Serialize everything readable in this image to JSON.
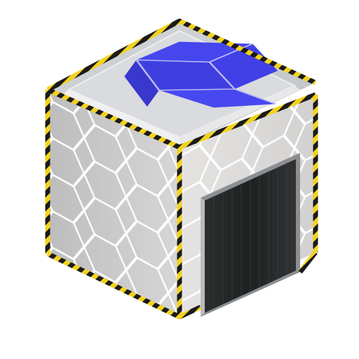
{
  "asset": {
    "icon": "open-box-icon",
    "colors": {
      "top_face": "#c9ccd0",
      "left_face": "#c8c8c8",
      "right_face": "#e4e2e0",
      "hex_glow": "#ffffff",
      "hazard_yellow": "#f2d21b",
      "hazard_black": "#1a1a1a",
      "box_icon": "#3f3fe0",
      "door": "#262829"
    }
  }
}
